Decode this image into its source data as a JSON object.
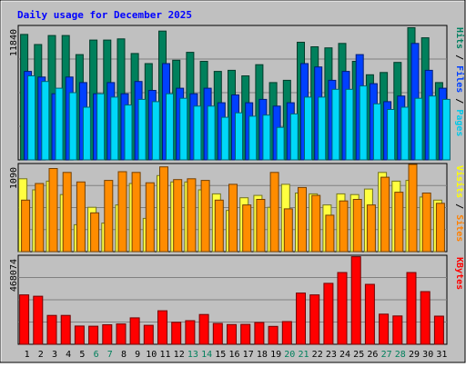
{
  "chart_data": [
    {
      "type": "bar",
      "title": "Daily usage for December 2025",
      "panel": "hits-files-pages",
      "categories": [
        "1",
        "2",
        "3",
        "4",
        "5",
        "6",
        "7",
        "8",
        "9",
        "10",
        "11",
        "12",
        "13",
        "14",
        "15",
        "16",
        "17",
        "18",
        "19",
        "20",
        "21",
        "22",
        "23",
        "24",
        "25",
        "26",
        "27",
        "28",
        "29",
        "30",
        "31"
      ],
      "weekend_days": [
        "6",
        "7",
        "13",
        "14",
        "20",
        "21",
        "27",
        "28"
      ],
      "y_max_label": "11840",
      "ylim": [
        0,
        11840
      ],
      "ylabel_parts": [
        {
          "text": "Pages",
          "color": "#00c8e8"
        },
        {
          "text": " / ",
          "color": "#000000"
        },
        {
          "text": "Files",
          "color": "#0040ff"
        },
        {
          "text": " / ",
          "color": "#000000"
        },
        {
          "text": "Hits",
          "color": "#008060"
        }
      ],
      "series": [
        {
          "name": "Hits",
          "color": "#00805c",
          "values": [
            11200,
            10300,
            11100,
            11100,
            9400,
            10700,
            10700,
            10800,
            9500,
            8600,
            11500,
            8900,
            9600,
            8800,
            7900,
            8000,
            7500,
            8500,
            6900,
            7100,
            10500,
            10100,
            10000,
            10400,
            8800,
            7600,
            7800,
            8700,
            11800,
            10900,
            6900
          ]
        },
        {
          "name": "Files",
          "color": "#0040ff",
          "values": [
            7900,
            7400,
            5900,
            7400,
            6900,
            5900,
            6900,
            5900,
            7000,
            6200,
            8600,
            6400,
            5900,
            6400,
            5100,
            5800,
            5100,
            5400,
            4800,
            5100,
            8600,
            8300,
            7100,
            7900,
            9400,
            6800,
            5200,
            5700,
            10400,
            8000,
            6400
          ]
        },
        {
          "name": "Pages",
          "color": "#00d8f8",
          "values": [
            7500,
            7000,
            6400,
            6000,
            4700,
            5900,
            5600,
            4900,
            5400,
            5200,
            5900,
            5500,
            4800,
            4800,
            3800,
            4200,
            3900,
            4000,
            2900,
            4100,
            5600,
            5600,
            6300,
            6300,
            6600,
            5000,
            4500,
            4700,
            5500,
            5700,
            5400
          ]
        }
      ]
    },
    {
      "type": "bar",
      "panel": "visits-sites",
      "categories": [
        "1",
        "2",
        "3",
        "4",
        "5",
        "6",
        "7",
        "8",
        "9",
        "10",
        "11",
        "12",
        "13",
        "14",
        "15",
        "16",
        "17",
        "18",
        "19",
        "20",
        "21",
        "22",
        "23",
        "24",
        "25",
        "26",
        "27",
        "28",
        "29",
        "30",
        "31"
      ],
      "y_max_label": "1090",
      "ylim": [
        0,
        1090
      ],
      "ylabel_parts": [
        {
          "text": "Sites",
          "color": "#ff8000"
        },
        {
          "text": " / ",
          "color": "#000000"
        },
        {
          "text": "Visits",
          "color": "#ffff00"
        }
      ],
      "series": [
        {
          "name": "Visits",
          "color": "#ffff40",
          "values": [
            920,
            780,
            890,
            720,
            340,
            560,
            360,
            590,
            860,
            420,
            960,
            880,
            880,
            780,
            730,
            520,
            680,
            710,
            560,
            850,
            740,
            730,
            590,
            730,
            720,
            790,
            1000,
            890,
            900,
            690,
            650
          ]
        },
        {
          "name": "Sites",
          "color": "#ff8c00",
          "values": [
            650,
            860,
            1050,
            1000,
            880,
            490,
            900,
            1010,
            1000,
            870,
            1070,
            910,
            920,
            900,
            650,
            850,
            590,
            660,
            1000,
            540,
            810,
            710,
            460,
            640,
            660,
            590,
            940,
            750,
            1140,
            740,
            610
          ]
        }
      ]
    },
    {
      "type": "bar",
      "panel": "kbytes",
      "categories": [
        "1",
        "2",
        "3",
        "4",
        "5",
        "6",
        "7",
        "8",
        "9",
        "10",
        "11",
        "12",
        "13",
        "14",
        "15",
        "16",
        "17",
        "18",
        "19",
        "20",
        "21",
        "22",
        "23",
        "24",
        "25",
        "26",
        "27",
        "28",
        "29",
        "30",
        "31"
      ],
      "y_max_label": "468074",
      "ylim": [
        0,
        468074
      ],
      "ylabel_parts": [
        {
          "text": "KBytes",
          "color": "#ff0000"
        }
      ],
      "series": [
        {
          "name": "KBytes",
          "color": "#ff0000",
          "values": [
            265000,
            258000,
            155000,
            155000,
            98000,
            97000,
            105000,
            109000,
            142000,
            102000,
            180000,
            118000,
            127000,
            160000,
            112000,
            106000,
            107000,
            117000,
            96000,
            122000,
            275000,
            265000,
            327000,
            385000,
            470000,
            322000,
            162000,
            152000,
            385000,
            283000,
            151000
          ]
        }
      ]
    }
  ]
}
